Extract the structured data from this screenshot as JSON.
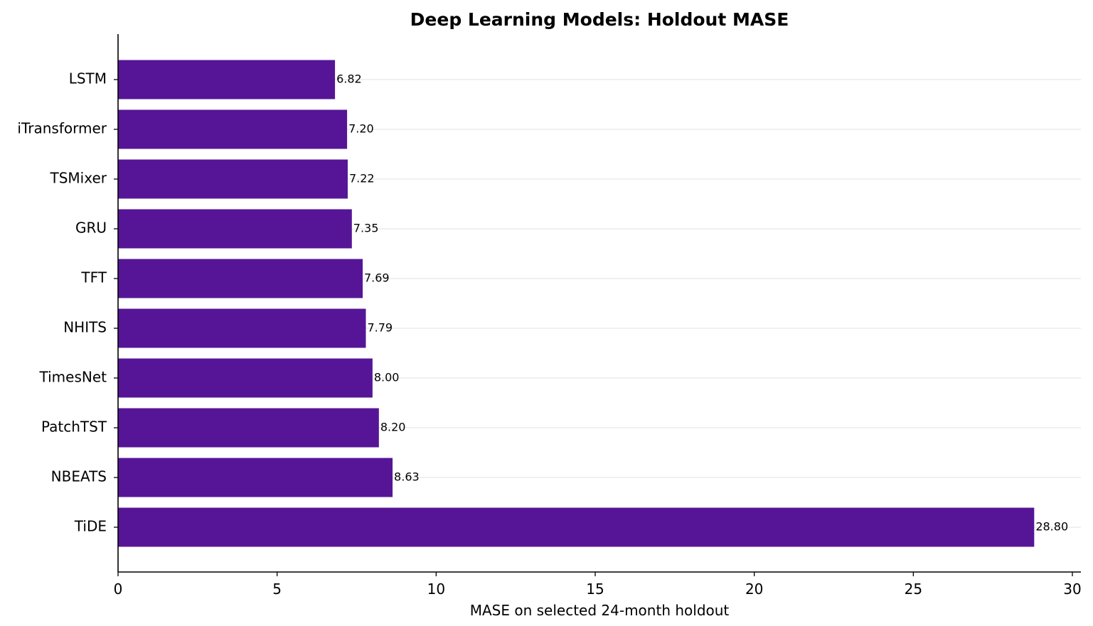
{
  "chart_data": {
    "type": "bar",
    "orientation": "horizontal",
    "title": "Deep Learning Models: Holdout MASE",
    "xlabel": "MASE on selected 24-month holdout",
    "ylabel": "",
    "categories": [
      "LSTM",
      "iTransformer",
      "TSMixer",
      "GRU",
      "TFT",
      "NHITS",
      "TimesNet",
      "PatchTST",
      "NBEATS",
      "TiDE"
    ],
    "values": [
      6.82,
      7.2,
      7.22,
      7.35,
      7.69,
      7.79,
      8.0,
      8.2,
      8.63,
      28.8
    ],
    "value_labels": [
      "6.82",
      "7.20",
      "7.22",
      "7.35",
      "7.69",
      "7.79",
      "8.00",
      "8.20",
      "8.63",
      "28.80"
    ],
    "xlim": [
      0,
      30
    ],
    "xticks": [
      0,
      5,
      10,
      15,
      20,
      25,
      30
    ],
    "xtick_labels": [
      "0",
      "5",
      "10",
      "15",
      "20",
      "25",
      "30"
    ],
    "grid": "horizontal",
    "bar_color": "#561596",
    "grid_color": "#e6e6e6"
  }
}
